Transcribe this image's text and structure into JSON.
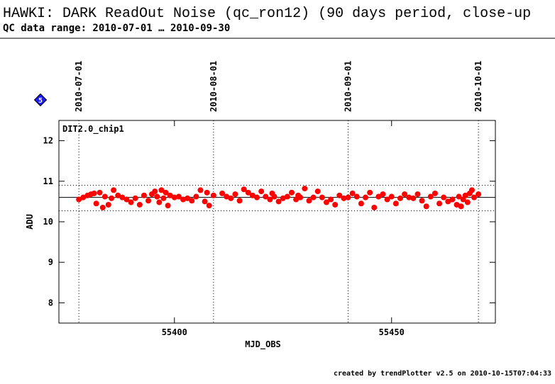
{
  "chart_data": {
    "type": "scatter",
    "title": "HAWKI: DARK ReadOut Noise (qc_ron12) (90 days period, close-up",
    "subtitle": "QC data range: 2010-07-01 … 2010-09-30",
    "badge": "5",
    "xlabel": "MJD_OBS",
    "ylabel": "ADU",
    "footer": "created by trendPlotter v2.5 on 2010-10-15T07:04:33",
    "xlim": [
      55373.4,
      55473.9
    ],
    "ylim": [
      7.5,
      12.5
    ],
    "xticks": [
      55400,
      55450
    ],
    "yticks": [
      8,
      9,
      10,
      11,
      12
    ],
    "top_ticks": [
      {
        "value": 55378,
        "label": "2010-07-01"
      },
      {
        "value": 55409,
        "label": "2010-08-01"
      },
      {
        "value": 55440,
        "label": "2010-09-01"
      },
      {
        "value": 55470,
        "label": "2010-10-01"
      }
    ],
    "hlines": [
      {
        "value": 10.6,
        "style": "solid"
      },
      {
        "value": 10.9,
        "style": "dotted"
      },
      {
        "value": 10.27,
        "style": "dotted"
      }
    ],
    "series": [
      {
        "name": "DIT2.0_chip1",
        "color": "#ff0000",
        "x": [
          55378,
          55379,
          55380,
          55380.8,
          55381.5,
          55382,
          55382.8,
          55383.5,
          55384,
          55384.8,
          55385.5,
          55386,
          55387,
          55388,
          55389,
          55390,
          55391,
          55392,
          55393,
          55394,
          55394.8,
          55395.5,
          55396,
          55396.5,
          55397,
          55397.5,
          55398,
          55398.5,
          55399,
          55400,
          55401,
          55402,
          55403,
          55404,
          55405,
          55406,
          55407,
          55407.5,
          55408,
          55409,
          55411,
          55412,
          55413,
          55414,
          55415,
          55416,
          55417,
          55418,
          55419,
          55420,
          55421,
          55422,
          55422.5,
          55423,
          55424,
          55425,
          55426,
          55427,
          55428,
          55428.5,
          55429,
          55430,
          55431,
          55432,
          55433,
          55434,
          55435,
          55436,
          55437,
          55438,
          55439,
          55440,
          55441,
          55442,
          55443,
          55444,
          55445,
          55446,
          55447,
          55448,
          55449,
          55450,
          55451,
          55452,
          55453,
          55454,
          55455,
          55456,
          55457,
          55458,
          55459,
          55460,
          55461,
          55462,
          55463,
          55464,
          55465,
          55465.5,
          55466,
          55466.5,
          55467,
          55467.5,
          55468,
          55468.5,
          55469,
          55470
        ],
        "values": [
          10.55,
          10.6,
          10.65,
          10.68,
          10.7,
          10.45,
          10.72,
          10.35,
          10.62,
          10.42,
          10.58,
          10.78,
          10.65,
          10.6,
          10.55,
          10.48,
          10.58,
          10.42,
          10.65,
          10.52,
          10.68,
          10.75,
          10.62,
          10.48,
          10.78,
          10.58,
          10.72,
          10.4,
          10.65,
          10.6,
          10.62,
          10.55,
          10.58,
          10.52,
          10.62,
          10.78,
          10.5,
          10.72,
          10.4,
          10.65,
          10.7,
          10.62,
          10.58,
          10.68,
          10.52,
          10.8,
          10.72,
          10.65,
          10.6,
          10.75,
          10.62,
          10.55,
          10.7,
          10.62,
          10.5,
          10.58,
          10.62,
          10.72,
          10.55,
          10.65,
          10.6,
          10.82,
          10.52,
          10.6,
          10.75,
          10.6,
          10.48,
          10.55,
          10.42,
          10.65,
          10.58,
          10.6,
          10.7,
          10.62,
          10.45,
          10.6,
          10.72,
          10.35,
          10.62,
          10.68,
          10.55,
          10.62,
          10.45,
          10.58,
          10.68,
          10.6,
          10.58,
          10.68,
          10.52,
          10.38,
          10.62,
          10.7,
          10.45,
          10.6,
          10.5,
          10.55,
          10.42,
          10.62,
          10.38,
          10.55,
          10.65,
          10.48,
          10.7,
          10.78,
          10.6,
          10.68
        ]
      }
    ]
  }
}
